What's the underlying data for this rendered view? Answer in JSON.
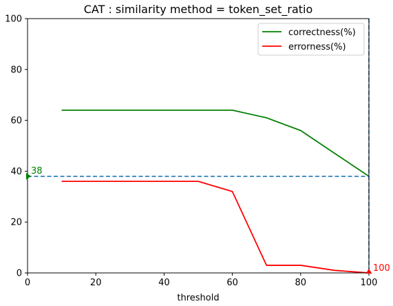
{
  "chart_data": {
    "type": "line",
    "title": "CAT : similarity method = token_set_ratio",
    "xlabel": "threshold",
    "ylabel": "",
    "xlim": [
      0,
      100
    ],
    "ylim": [
      0,
      100
    ],
    "x_ticks": [
      0,
      20,
      40,
      60,
      80,
      100
    ],
    "y_ticks": [
      0,
      20,
      40,
      60,
      80,
      100
    ],
    "grid": false,
    "legend_position": "top-right",
    "series": [
      {
        "name": "correctness(%)",
        "color": "#008000",
        "x": [
          10,
          20,
          30,
          40,
          50,
          60,
          70,
          80,
          90,
          100
        ],
        "y": [
          64,
          64,
          64,
          64,
          64,
          64,
          61,
          56,
          47,
          38
        ]
      },
      {
        "name": "errorness(%)",
        "color": "#ff0000",
        "x": [
          10,
          20,
          30,
          40,
          50,
          60,
          70,
          80,
          90,
          100
        ],
        "y": [
          36,
          36,
          36,
          36,
          36,
          32,
          3,
          3,
          1,
          0
        ]
      }
    ],
    "reference_lines": [
      {
        "orientation": "horizontal",
        "value": 38,
        "color": "#1f77b4",
        "style": "dashed"
      },
      {
        "orientation": "vertical",
        "value": 100,
        "color": "#1f77b4",
        "style": "dashed"
      }
    ],
    "annotations": [
      {
        "text": "38",
        "x": 0,
        "y": 38,
        "color": "#008000",
        "marker": "triangle-right"
      },
      {
        "text": "100",
        "x": 100,
        "y": 0,
        "color": "#ff0000",
        "marker": "triangle-up"
      }
    ]
  }
}
